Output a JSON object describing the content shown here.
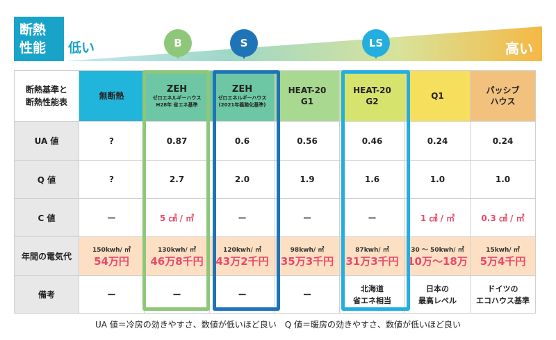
{
  "title": {
    "label": "断熱\n性能",
    "low": "低い",
    "high": "高い"
  },
  "colors": {
    "blue": "#1aa3c9",
    "green": "#8ec77a",
    "darkblue": "#1f74b8",
    "cyan": "#24aee0",
    "red": "#e8496a"
  },
  "badges": {
    "b": "B",
    "s": "S",
    "ls": "LS"
  },
  "corner": "断熱基準と\n断熱性能表",
  "columns": [
    {
      "main": "無断熱",
      "sub": ""
    },
    {
      "main": "ZEH",
      "sub": "ゼロエネルギーハウス\nH28年 省エネ基準"
    },
    {
      "main": "ZEH",
      "sub": "ゼロエネルギーハウス\n(2021年義務化基準)"
    },
    {
      "main": "HEAT-20\nG1",
      "sub": ""
    },
    {
      "main": "HEAT-20\nG2",
      "sub": ""
    },
    {
      "main": "Q1",
      "sub": ""
    },
    {
      "main": "パッシブ\nハウス",
      "sub": ""
    }
  ],
  "rows": {
    "ua": {
      "label": "UA 値",
      "values": [
        "?",
        "0.87",
        "0.6",
        "0.56",
        "0.46",
        "0.24",
        "0.24"
      ]
    },
    "q": {
      "label": "Q 値",
      "values": [
        "?",
        "2.7",
        "2.0",
        "1.9",
        "1.6",
        "1.0",
        "1.0"
      ]
    },
    "c": {
      "label": "C 値",
      "values": [
        "ー",
        "5 ㎠ / ㎡",
        "ー",
        "ー",
        "ー",
        "1 ㎠ / ㎡",
        "0.3 ㎠ / ㎡"
      ]
    },
    "energy": {
      "label": "年間の電気代",
      "kwh": [
        "150kwh/ ㎡",
        "130kwh/ ㎡",
        "120kwh/ ㎡",
        "98kwh/ ㎡",
        "87kwh/ ㎡",
        "30 〜 50kwh/ ㎡",
        "15kwh/ ㎡"
      ],
      "cost": [
        "54万円",
        "46万8千円",
        "43万2千円",
        "35万3千円",
        "31万3千円",
        "10万〜18万",
        "5万4千円"
      ]
    },
    "notes": {
      "label": "備考",
      "values": [
        "ー",
        "ー",
        "ー",
        "ー",
        "北海道\n省エネ相当",
        "日本の\n最高レベル",
        "ドイツの\nエコハウス基準"
      ]
    }
  },
  "footnote": "UA 値＝冷房の効きやすさ、数値が低いほど良い　Q 値＝暖房の効きやすさ、数値が低いほど良い"
}
